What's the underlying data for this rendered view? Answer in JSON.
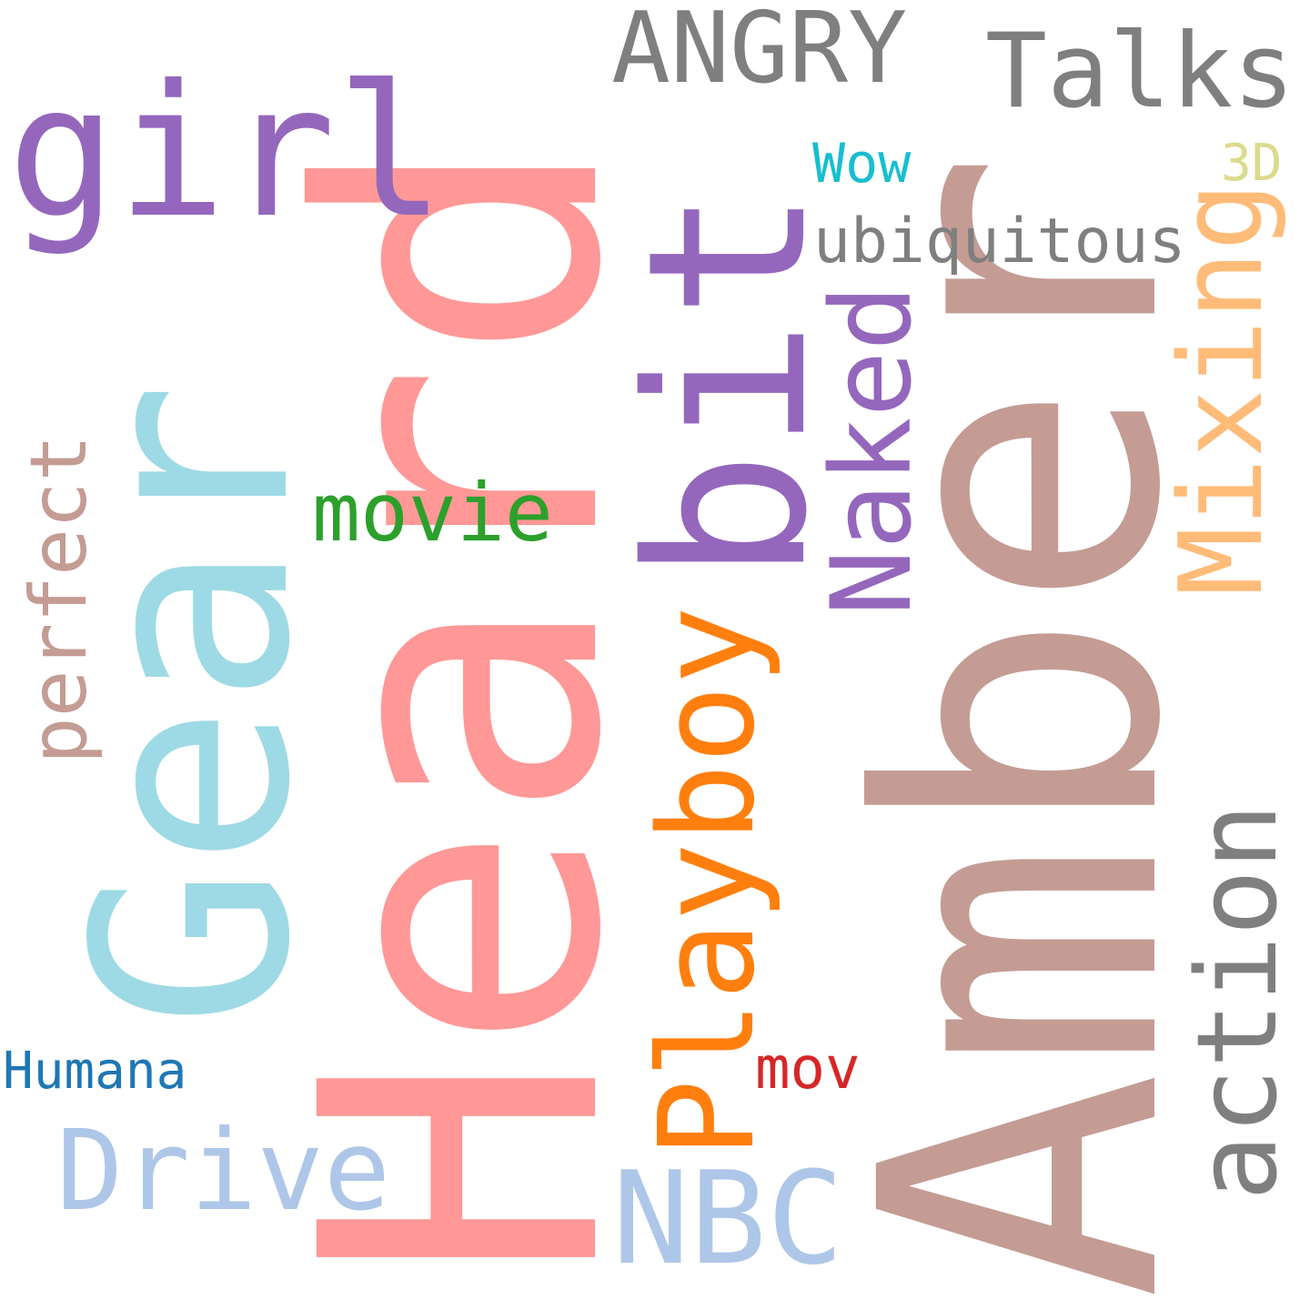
{
  "words": [
    {
      "key": "amber",
      "text": "Amber",
      "color": "#c49c94"
    },
    {
      "key": "heard",
      "text": "Heard",
      "color": "#ff9896"
    },
    {
      "key": "gear",
      "text": "Gear",
      "color": "#9edae5"
    },
    {
      "key": "bit",
      "text": "bit",
      "color": "#9467bd"
    },
    {
      "key": "girl",
      "text": "girl",
      "color": "#9467bd"
    },
    {
      "key": "angry",
      "text": "ANGRY",
      "color": "#7f7f7f"
    },
    {
      "key": "talks",
      "text": "Talks",
      "color": "#7f7f7f"
    },
    {
      "key": "playboy",
      "text": "Playboy",
      "color": "#ff7f0e"
    },
    {
      "key": "action",
      "text": "action",
      "color": "#7f7f7f"
    },
    {
      "key": "mixing",
      "text": "Mixing",
      "color": "#ffbb78"
    },
    {
      "key": "naked",
      "text": "Naked",
      "color": "#9467bd"
    },
    {
      "key": "drive",
      "text": "Drive",
      "color": "#aec7e8"
    },
    {
      "key": "nbc",
      "text": "NBC",
      "color": "#aec7e8"
    },
    {
      "key": "perfect",
      "text": "perfect",
      "color": "#c49c94"
    },
    {
      "key": "movie",
      "text": "movie",
      "color": "#2ca02c"
    },
    {
      "key": "ubiquitous",
      "text": "ubiquitous",
      "color": "#7f7f7f"
    },
    {
      "key": "wow",
      "text": "Wow",
      "color": "#17becf"
    },
    {
      "key": "three_d",
      "text": "3D",
      "color": "#dbdb8d"
    },
    {
      "key": "humana",
      "text": "Humana",
      "color": "#1f77b4"
    },
    {
      "key": "mov",
      "text": "mov",
      "color": "#d62728"
    }
  ]
}
